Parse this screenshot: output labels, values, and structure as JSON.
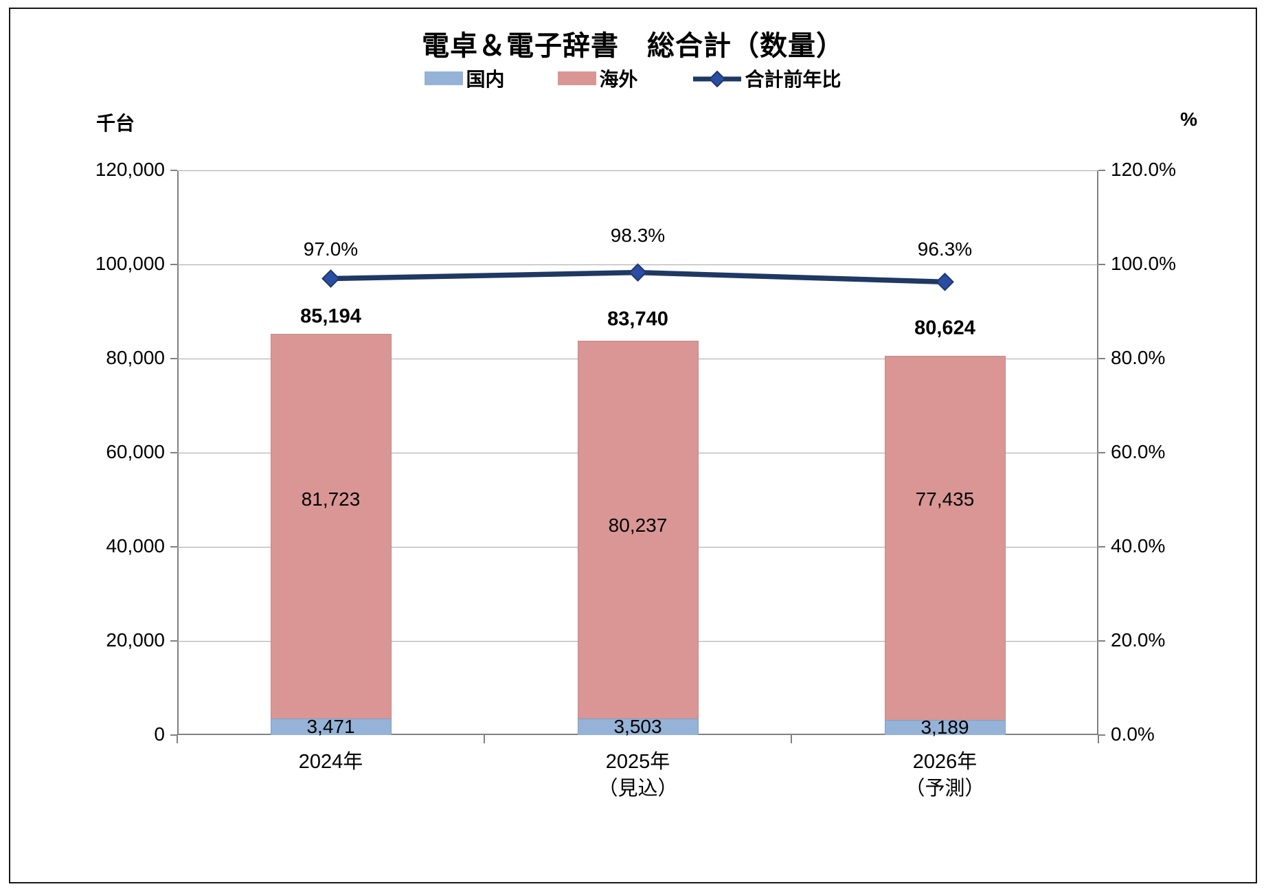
{
  "title": "電卓＆電子辞書　総合計（数量）",
  "left_axis_unit": "千台",
  "right_axis_unit": "%",
  "legend": [
    {
      "label": "国内",
      "type": "swatch",
      "color": "#95b3d7"
    },
    {
      "label": "海外",
      "type": "swatch",
      "color": "#d99694"
    },
    {
      "label": "合計前年比",
      "type": "line-marker",
      "color": "#1f3864",
      "marker_color": "#2a4da6"
    }
  ],
  "chart_data": {
    "type": "bar",
    "subtype": "stacked-bars-with-line-overlay",
    "title": "電卓＆電子辞書　総合計（数量）",
    "categories": [
      "2024年",
      "2025年（見込）",
      "2026年（予測）"
    ],
    "category_lines": [
      [
        "2024年"
      ],
      [
        "2025年",
        "（見込）"
      ],
      [
        "2026年",
        "（予測）"
      ]
    ],
    "series": [
      {
        "name": "国内",
        "type": "bar",
        "stacked": true,
        "axis": "left",
        "color": "#95b3d7",
        "border_color": "#7f9fc6",
        "values": [
          3471,
          3503,
          3189
        ],
        "labels": [
          "3,471",
          "3,503",
          "3,189"
        ]
      },
      {
        "name": "海外",
        "type": "bar",
        "stacked": true,
        "axis": "left",
        "color": "#d99694",
        "border_color": "#c08987",
        "values": [
          81723,
          80237,
          77435
        ],
        "labels": [
          "81,723",
          "80,237",
          "77,435"
        ],
        "label_dy_hint": [
          -39,
          -6,
          -56
        ]
      },
      {
        "name": "合計前年比",
        "type": "line",
        "axis": "right",
        "color": "#1f3864",
        "marker": "diamond",
        "marker_color": "#2a4da6",
        "values": [
          97.0,
          98.3,
          96.3
        ],
        "labels": [
          "97.0%",
          "98.3%",
          "96.3%"
        ],
        "label_dy_hint": [
          -43,
          -54,
          -47
        ]
      }
    ],
    "totals": {
      "values": [
        85194,
        83740,
        80624
      ],
      "labels": [
        "85,194",
        "83,740",
        "80,624"
      ],
      "label_dy_hint": [
        -25,
        -31,
        -40
      ]
    },
    "left_axis": {
      "title": "千台",
      "min": 0,
      "max": 120000,
      "step": 20000,
      "tick_labels": [
        "120,000",
        "100,000",
        "80,000",
        "60,000",
        "40,000",
        "20,000",
        "0"
      ]
    },
    "right_axis": {
      "title": "%",
      "min": 0,
      "max": 120,
      "step": 20,
      "tick_labels": [
        "120.0%",
        "100.0%",
        "80.0%",
        "60.0%",
        "40.0%",
        "20.0%",
        "0.0%"
      ]
    },
    "grid": true,
    "legend_position": "top-center"
  }
}
